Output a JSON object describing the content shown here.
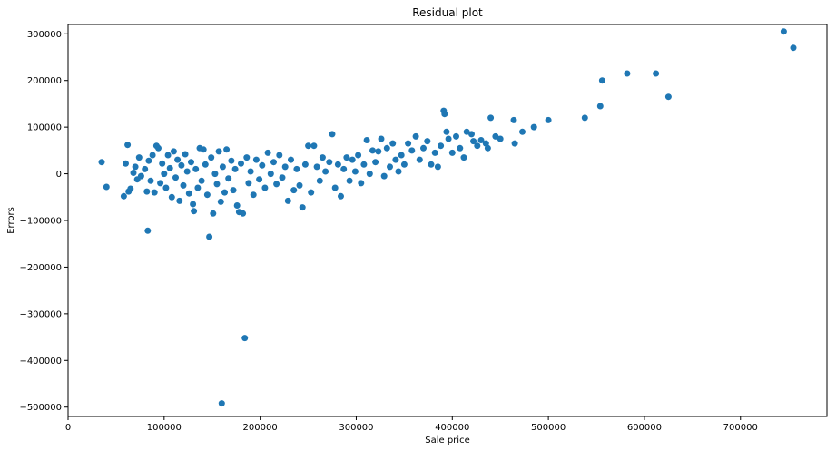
{
  "chart_data": {
    "type": "scatter",
    "title": "Residual plot",
    "xlabel": "Sale price",
    "ylabel": "Errors",
    "xlim": [
      0,
      790000
    ],
    "ylim": [
      -520000,
      320000
    ],
    "x_ticks": [
      0,
      100000,
      200000,
      300000,
      400000,
      500000,
      600000,
      700000
    ],
    "x_tick_labels": [
      "0",
      "100000",
      "200000",
      "300000",
      "400000",
      "500000",
      "600000",
      "700000"
    ],
    "y_ticks": [
      300000,
      200000,
      100000,
      0,
      -100000,
      -200000,
      -300000,
      -400000,
      -500000
    ],
    "y_tick_labels": [
      "300000",
      "200000",
      "100000",
      "0",
      "−100000",
      "−200000",
      "−300000",
      "−400000",
      "−500000"
    ],
    "grid": false,
    "marker_color": "#1f77b4",
    "series": [
      {
        "points": [
          [
            35000,
            25000
          ],
          [
            40000,
            -28000
          ],
          [
            58000,
            -48000
          ],
          [
            60000,
            22000
          ],
          [
            62000,
            62000
          ],
          [
            63000,
            -38000
          ],
          [
            65000,
            -32000
          ],
          [
            68000,
            2000
          ],
          [
            70000,
            15000
          ],
          [
            72000,
            -12000
          ],
          [
            74000,
            35000
          ],
          [
            76000,
            -5000
          ],
          [
            80000,
            10000
          ],
          [
            82000,
            -38000
          ],
          [
            83000,
            -122000
          ],
          [
            84000,
            28000
          ],
          [
            86000,
            -15000
          ],
          [
            88000,
            40000
          ],
          [
            90000,
            -40000
          ],
          [
            92000,
            60000
          ],
          [
            94000,
            55000
          ],
          [
            96000,
            -20000
          ],
          [
            98000,
            22000
          ],
          [
            100000,
            0
          ],
          [
            102000,
            -30000
          ],
          [
            104000,
            40000
          ],
          [
            106000,
            12000
          ],
          [
            108000,
            -50000
          ],
          [
            110000,
            48000
          ],
          [
            112000,
            -8000
          ],
          [
            114000,
            30000
          ],
          [
            116000,
            -58000
          ],
          [
            118000,
            18000
          ],
          [
            120000,
            -25000
          ],
          [
            122000,
            42000
          ],
          [
            124000,
            5000
          ],
          [
            126000,
            -42000
          ],
          [
            128000,
            25000
          ],
          [
            130000,
            -65000
          ],
          [
            131000,
            -80000
          ],
          [
            133000,
            10000
          ],
          [
            135000,
            -30000
          ],
          [
            137000,
            55000
          ],
          [
            139000,
            -15000
          ],
          [
            141000,
            52000
          ],
          [
            143000,
            20000
          ],
          [
            145000,
            -45000
          ],
          [
            147000,
            -135000
          ],
          [
            149000,
            35000
          ],
          [
            151000,
            -85000
          ],
          [
            153000,
            0
          ],
          [
            155000,
            -22000
          ],
          [
            157000,
            48000
          ],
          [
            159000,
            -60000
          ],
          [
            160000,
            -492000
          ],
          [
            161000,
            15000
          ],
          [
            163000,
            -40000
          ],
          [
            165000,
            52000
          ],
          [
            167000,
            -10000
          ],
          [
            170000,
            28000
          ],
          [
            172000,
            -35000
          ],
          [
            174000,
            10000
          ],
          [
            176000,
            -68000
          ],
          [
            178000,
            -82000
          ],
          [
            180000,
            22000
          ],
          [
            182000,
            -85000
          ],
          [
            184000,
            -352000
          ],
          [
            186000,
            35000
          ],
          [
            188000,
            -20000
          ],
          [
            190000,
            5000
          ],
          [
            193000,
            -45000
          ],
          [
            196000,
            30000
          ],
          [
            199000,
            -12000
          ],
          [
            202000,
            18000
          ],
          [
            205000,
            -30000
          ],
          [
            208000,
            45000
          ],
          [
            211000,
            0
          ],
          [
            214000,
            25000
          ],
          [
            217000,
            -22000
          ],
          [
            220000,
            40000
          ],
          [
            223000,
            -8000
          ],
          [
            226000,
            15000
          ],
          [
            229000,
            -58000
          ],
          [
            232000,
            30000
          ],
          [
            235000,
            -35000
          ],
          [
            238000,
            10000
          ],
          [
            241000,
            -25000
          ],
          [
            244000,
            -72000
          ],
          [
            247000,
            20000
          ],
          [
            250000,
            60000
          ],
          [
            253000,
            -40000
          ],
          [
            256000,
            60000
          ],
          [
            259000,
            15000
          ],
          [
            262000,
            -15000
          ],
          [
            265000,
            35000
          ],
          [
            268000,
            5000
          ],
          [
            272000,
            25000
          ],
          [
            275000,
            85000
          ],
          [
            278000,
            -30000
          ],
          [
            281000,
            20000
          ],
          [
            284000,
            -48000
          ],
          [
            287000,
            10000
          ],
          [
            290000,
            35000
          ],
          [
            293000,
            -15000
          ],
          [
            296000,
            30000
          ],
          [
            299000,
            5000
          ],
          [
            302000,
            40000
          ],
          [
            305000,
            -20000
          ],
          [
            308000,
            20000
          ],
          [
            311000,
            72000
          ],
          [
            314000,
            0
          ],
          [
            317000,
            50000
          ],
          [
            320000,
            25000
          ],
          [
            323000,
            48000
          ],
          [
            326000,
            75000
          ],
          [
            329000,
            -5000
          ],
          [
            332000,
            55000
          ],
          [
            335000,
            15000
          ],
          [
            338000,
            65000
          ],
          [
            341000,
            30000
          ],
          [
            344000,
            5000
          ],
          [
            347000,
            40000
          ],
          [
            350000,
            20000
          ],
          [
            354000,
            65000
          ],
          [
            358000,
            50000
          ],
          [
            362000,
            80000
          ],
          [
            366000,
            30000
          ],
          [
            370000,
            55000
          ],
          [
            374000,
            70000
          ],
          [
            378000,
            20000
          ],
          [
            382000,
            45000
          ],
          [
            385000,
            15000
          ],
          [
            388000,
            60000
          ],
          [
            391000,
            135000
          ],
          [
            392000,
            128000
          ],
          [
            394000,
            90000
          ],
          [
            396000,
            75000
          ],
          [
            400000,
            45000
          ],
          [
            404000,
            80000
          ],
          [
            408000,
            55000
          ],
          [
            412000,
            35000
          ],
          [
            415000,
            90000
          ],
          [
            420000,
            85000
          ],
          [
            422000,
            70000
          ],
          [
            426000,
            60000
          ],
          [
            430000,
            72000
          ],
          [
            435000,
            65000
          ],
          [
            437000,
            55000
          ],
          [
            440000,
            120000
          ],
          [
            445000,
            80000
          ],
          [
            450000,
            75000
          ],
          [
            464000,
            115000
          ],
          [
            465000,
            65000
          ],
          [
            473000,
            90000
          ],
          [
            485000,
            100000
          ],
          [
            500000,
            115000
          ],
          [
            538000,
            120000
          ],
          [
            554000,
            145000
          ],
          [
            556000,
            200000
          ],
          [
            582000,
            215000
          ],
          [
            612000,
            215000
          ],
          [
            625000,
            165000
          ],
          [
            745000,
            305000
          ],
          [
            755000,
            270000
          ]
        ]
      }
    ]
  }
}
